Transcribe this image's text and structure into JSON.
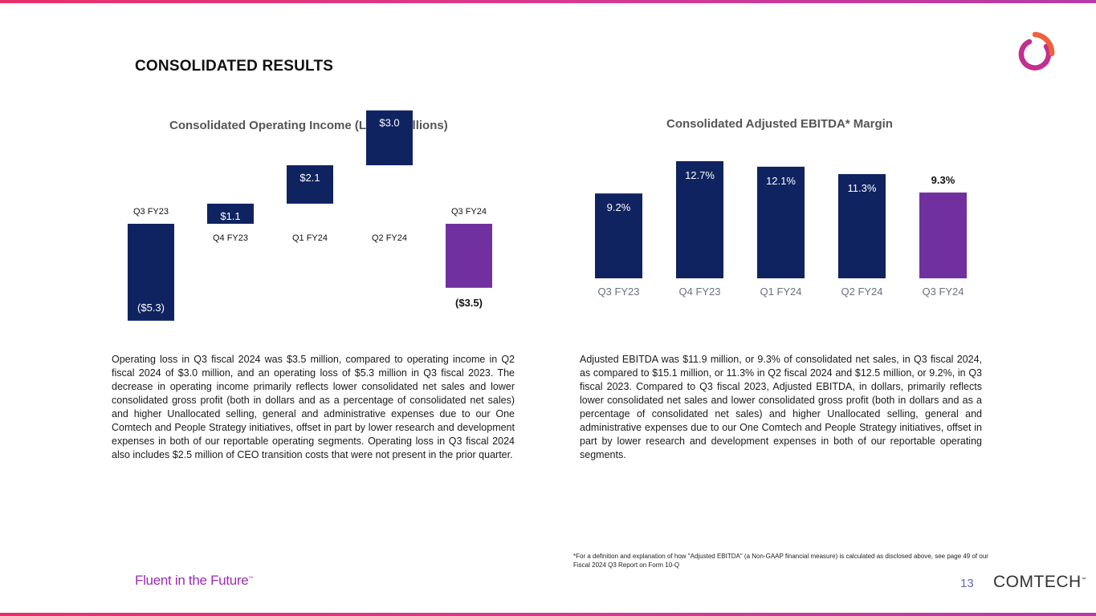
{
  "page": {
    "title": "CONSOLIDATED RESULTS",
    "tagline": "Fluent in the Future",
    "tagline_mark": "™",
    "page_number": "13",
    "brand": "COMTECH",
    "brand_mark": "™",
    "footnote": "*For a definition and explanation of how \"Adjusted EBITDA\" (a Non-GAAP financial measure) is calculated as disclosed above, see page 49 of our Fiscal 2024 Q3 Report on Form 10-Q"
  },
  "text": {
    "left_paragraph": "Operating loss in Q3 fiscal 2024 was $3.5 million, compared to operating income in Q2 fiscal 2024 of $3.0 million, and an operating loss of $5.3 million in Q3 fiscal 2023. The decrease in operating income primarily reflects lower consolidated net sales and lower consolidated gross profit (both in dollars and as a percentage of consolidated net sales) and higher Unallocated selling, general and administrative expenses due to our One Comtech and People Strategy initiatives, offset in part by lower research and development expenses in both of our reportable operating segments. Operating loss in Q3 fiscal 2024 also includes $2.5 million of CEO transition costs that were not present in the prior quarter.",
    "right_paragraph": "Adjusted EBITDA was $11.9 million, or 9.3% of consolidated net sales, in Q3 fiscal 2024, as compared to $15.1 million, or 11.3% in Q2 fiscal 2024 and $12.5 million, or 9.2%, in Q3 fiscal 2023. Compared to Q3 fiscal 2023, Adjusted EBITDA, in dollars, primarily reflects lower consolidated net sales and lower consolidated gross profit (both in dollars and as a percentage of consolidated net sales) and higher Unallocated selling, general and administrative expenses due to our One Comtech and People Strategy initiatives, offset in part by lower research and development expenses in both of our reportable operating segments."
  },
  "colors": {
    "navy": "#0f2360",
    "purple": "#7030a0",
    "logo_red": "#e8306b",
    "logo_orange": "#f07a3a",
    "logo_purple": "#8b2fb0"
  },
  "icons": {
    "logo": "comtech-ring-logo-icon"
  },
  "chart_data": [
    {
      "type": "bar",
      "title": "Consolidated Operating Income (Loss) (millions)",
      "categories": [
        "Q3 FY23",
        "Q4 FY23",
        "Q1 FY24",
        "Q2 FY24",
        "Q3 FY24"
      ],
      "values": [
        -5.3,
        1.1,
        2.1,
        3.0,
        -3.5
      ],
      "labels": [
        "($5.3)",
        "$1.1",
        "$2.1",
        "$3.0",
        "($3.5)"
      ],
      "ylim": [
        -5.3,
        3.0
      ],
      "highlight_index": 4,
      "grid": false
    },
    {
      "type": "bar",
      "title": "Consolidated Adjusted EBITDA* Margin",
      "categories": [
        "Q3 FY23",
        "Q4 FY23",
        "Q1 FY24",
        "Q2 FY24",
        "Q3 FY24"
      ],
      "values": [
        9.2,
        12.7,
        12.1,
        11.3,
        9.3
      ],
      "labels": [
        "9.2%",
        "12.7%",
        "12.1%",
        "11.3%",
        "9.3%"
      ],
      "ylim": [
        0,
        12.7
      ],
      "highlight_index": 4,
      "grid": false
    }
  ]
}
